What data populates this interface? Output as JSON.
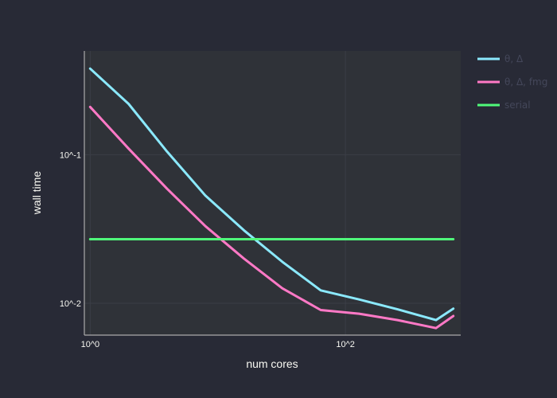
{
  "chart_data": {
    "type": "line",
    "title": "",
    "xlabel": "num cores",
    "ylabel": "wall time",
    "x_scale": "log",
    "y_scale": "log",
    "xlim": [
      0.9,
      800
    ],
    "ylim": [
      0.0061,
      0.5
    ],
    "x_ticks": [
      {
        "value": 1,
        "label": "10^0"
      },
      {
        "value": 100,
        "label": "10^2"
      }
    ],
    "y_ticks": [
      {
        "value": 0.01,
        "label": "10^-2"
      },
      {
        "value": 0.1,
        "label": "10^-1"
      }
    ],
    "grid": true,
    "legend_position": "top-right",
    "series": [
      {
        "name": "θ, Δ",
        "color": "#8be9fd",
        "x": [
          1,
          2,
          4,
          8,
          16,
          32,
          64,
          128,
          256,
          512,
          700
        ],
        "y": [
          0.38,
          0.22,
          0.105,
          0.053,
          0.031,
          0.019,
          0.0122,
          0.0106,
          0.0091,
          0.0077,
          0.0092
        ]
      },
      {
        "name": "θ, Δ, fmg",
        "color": "#ff79c6",
        "x": [
          1,
          2,
          4,
          8,
          16,
          32,
          64,
          128,
          256,
          512,
          700
        ],
        "y": [
          0.21,
          0.11,
          0.059,
          0.033,
          0.02,
          0.0126,
          0.009,
          0.0085,
          0.0077,
          0.0068,
          0.0082
        ]
      },
      {
        "name": "serial",
        "color": "#50fa7b",
        "x": [
          1,
          700
        ],
        "y": [
          0.027,
          0.027
        ]
      }
    ]
  },
  "colors": {
    "background": "#282a36",
    "plot_background": "#2f3238",
    "grid": "#3b3e46",
    "axis_line": "#aaaaaa",
    "text": "#f8f8f2",
    "legend_text": "#44475a"
  }
}
